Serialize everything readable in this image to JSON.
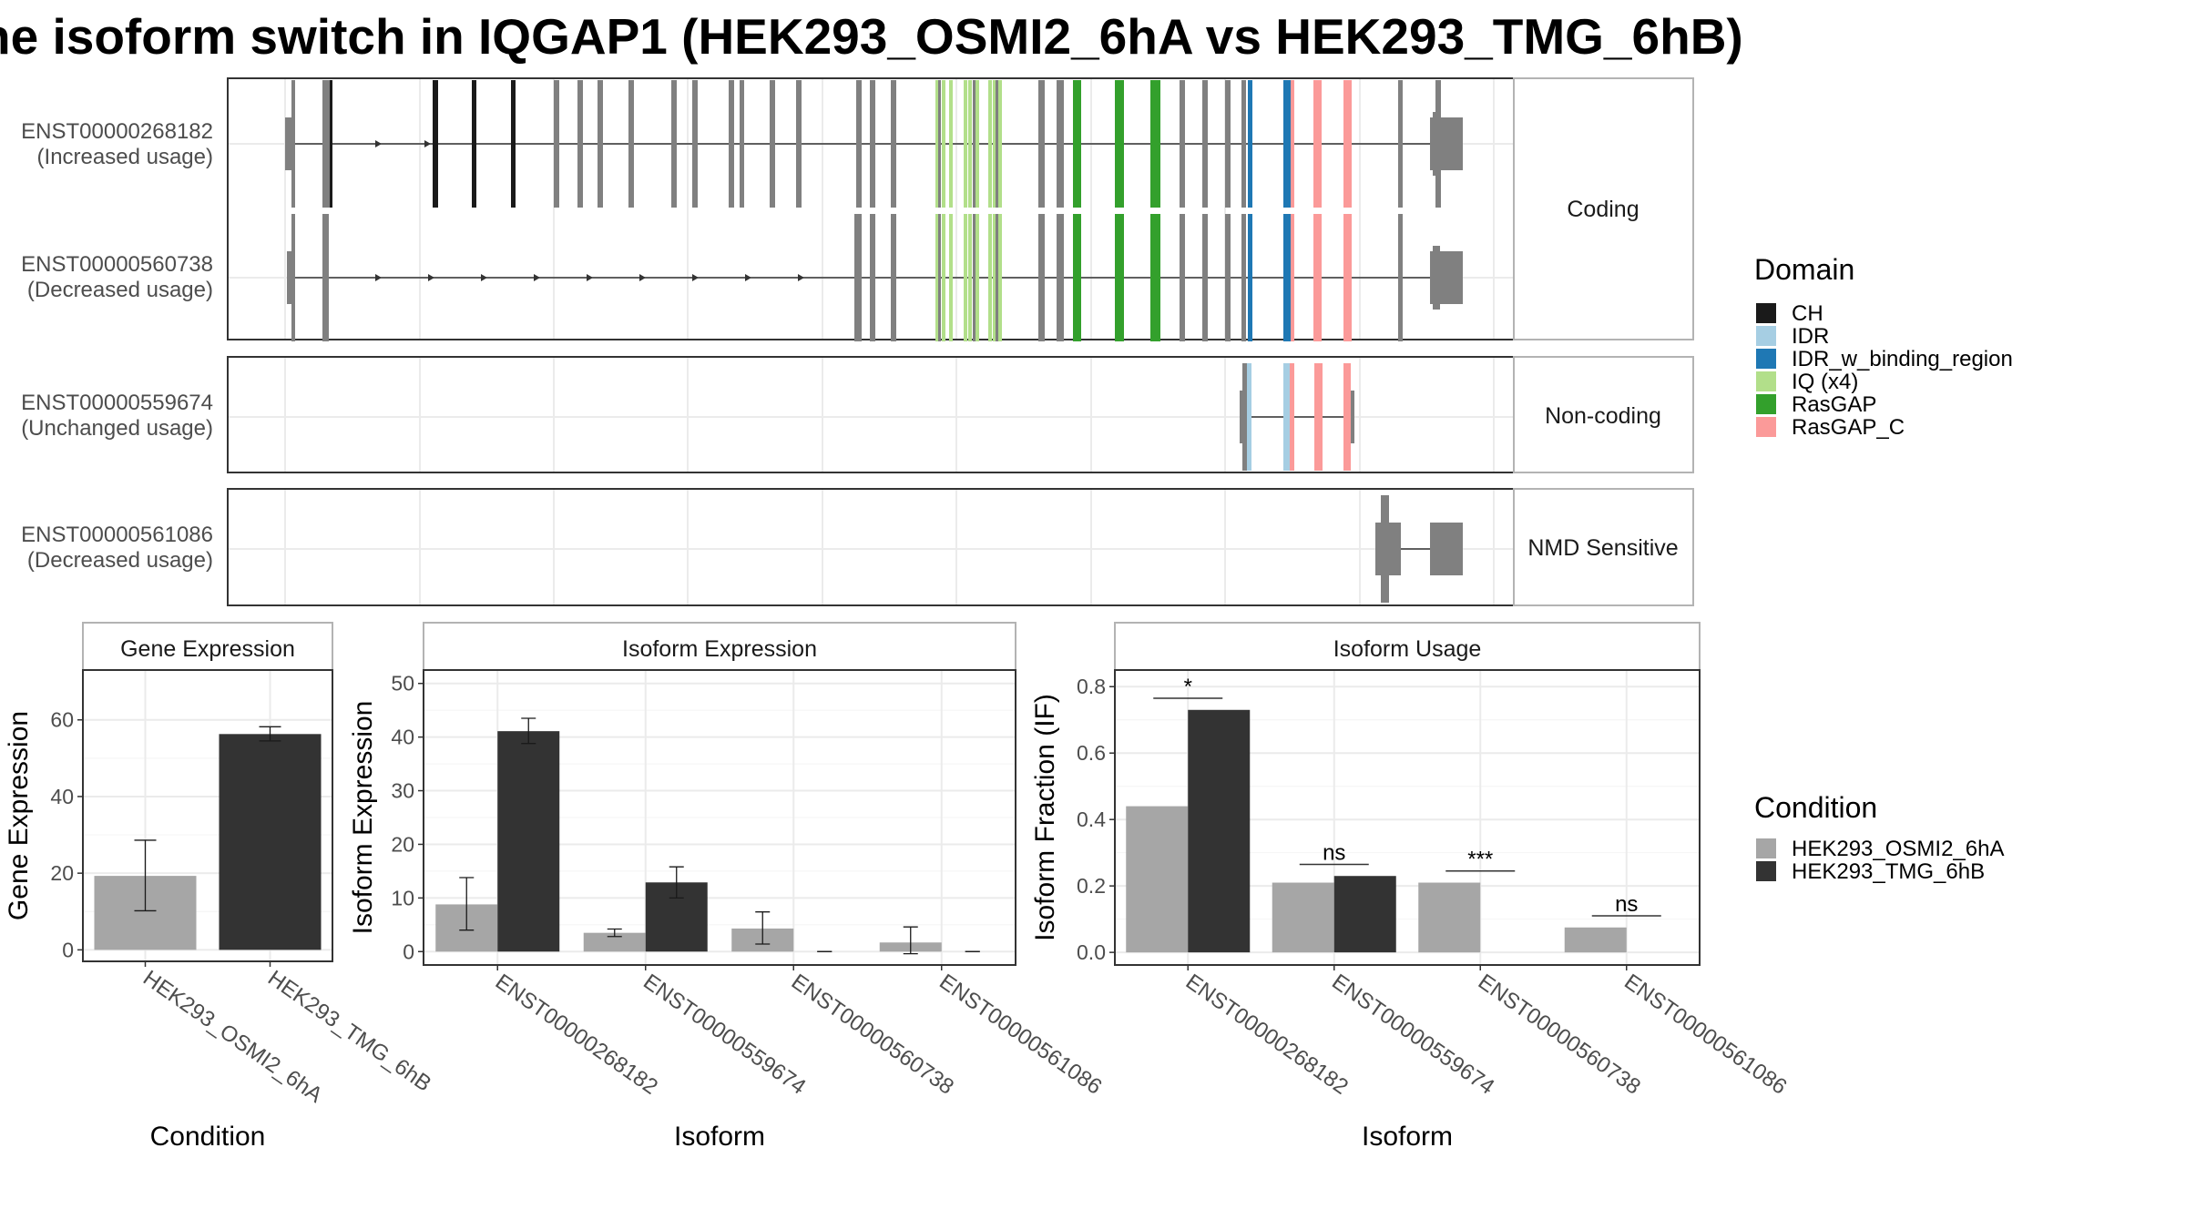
{
  "title": "he isoform switch in IQGAP1 (HEK293_OSMI2_6hA vs HEK293_TMG_6hB)",
  "colors": {
    "OSMI2": "#a6a6a6",
    "TMG": "#333333",
    "exon": "#808080",
    "domains": {
      "CH": "#1a1a1a",
      "IDR": "#a6cee3",
      "IDR_w_binding_region": "#1f78b4",
      "IQ (x4)": "#b2df8a",
      "RasGAP": "#33a02c",
      "RasGAP_C": "#fb9a99"
    }
  },
  "structure": {
    "facets": [
      "Coding",
      "Non-coding",
      "NMD Sensitive"
    ],
    "transcripts": [
      {
        "id": "ENST00000268182",
        "usage": "(Increased usage)",
        "facet": "Coding"
      },
      {
        "id": "ENST00000560738",
        "usage": "(Decreased usage)",
        "facet": "Coding"
      },
      {
        "id": "ENST00000559674",
        "usage": "(Unchanged usage)",
        "facet": "Non-coding"
      },
      {
        "id": "ENST00000561086",
        "usage": "(Decreased usage)",
        "facet": "NMD Sensitive"
      }
    ]
  },
  "legend": {
    "domain_title": "Domain",
    "domains": [
      "CH",
      "IDR",
      "IDR_w_binding_region",
      "IQ (x4)",
      "RasGAP",
      "RasGAP_C"
    ],
    "condition_title": "Condition",
    "conditions": [
      "HEK293_OSMI2_6hA",
      "HEK293_TMG_6hB"
    ]
  },
  "chart_data": [
    {
      "type": "bar",
      "title": "Gene Expression",
      "xlabel": "Condition",
      "ylabel": "Gene Expression",
      "categories": [
        "HEK293_OSMI2_6hA",
        "HEK293_TMG_6hB"
      ],
      "values": [
        19.3,
        56.3
      ],
      "errors": [
        [
          10.2,
          28.6
        ],
        [
          54.5,
          58.2
        ]
      ],
      "ylim": [
        -3,
        73
      ],
      "yticks": [
        0,
        20,
        40,
        60
      ],
      "grid": true
    },
    {
      "type": "bar",
      "title": "Isoform Expression",
      "xlabel": "Isoform",
      "ylabel": "Isoform Expression",
      "categories": [
        "ENST00000268182",
        "ENST00000559674",
        "ENST00000560738",
        "ENST00000561086"
      ],
      "series": [
        {
          "name": "HEK293_OSMI2_6hA",
          "values": [
            8.8,
            3.5,
            4.3,
            1.7
          ],
          "errors": [
            [
              4,
              13.8
            ],
            [
              2.8,
              4.2
            ],
            [
              1.4,
              7.4
            ],
            [
              -0.4,
              4.6
            ]
          ]
        },
        {
          "name": "HEK293_TMG_6hB",
          "values": [
            41.1,
            12.9,
            0,
            0
          ],
          "errors": [
            [
              38.8,
              43.5
            ],
            [
              10.0,
              15.8
            ],
            [
              0,
              0
            ],
            [
              0,
              0
            ]
          ]
        }
      ],
      "ylim": [
        -2.5,
        52.5
      ],
      "yticks": [
        0,
        10,
        20,
        30,
        40,
        50
      ],
      "grid": true
    },
    {
      "type": "bar",
      "title": "Isoform Usage",
      "xlabel": "Isoform",
      "ylabel": "Isoform Fraction (IF)",
      "categories": [
        "ENST00000268182",
        "ENST00000559674",
        "ENST00000560738",
        "ENST00000561086"
      ],
      "series": [
        {
          "name": "HEK293_OSMI2_6hA",
          "values": [
            0.44,
            0.21,
            0.21,
            0.075
          ]
        },
        {
          "name": "HEK293_TMG_6hB",
          "values": [
            0.73,
            0.23,
            0,
            0
          ]
        }
      ],
      "significance": [
        "*",
        "ns",
        "***",
        "ns"
      ],
      "ylim": [
        -0.038,
        0.85
      ],
      "yticks": [
        0.0,
        0.2,
        0.4,
        0.6,
        0.8
      ],
      "ytick_labels": [
        "0.0",
        "0.2",
        "0.4",
        "0.6",
        "0.8"
      ],
      "grid": true
    }
  ]
}
